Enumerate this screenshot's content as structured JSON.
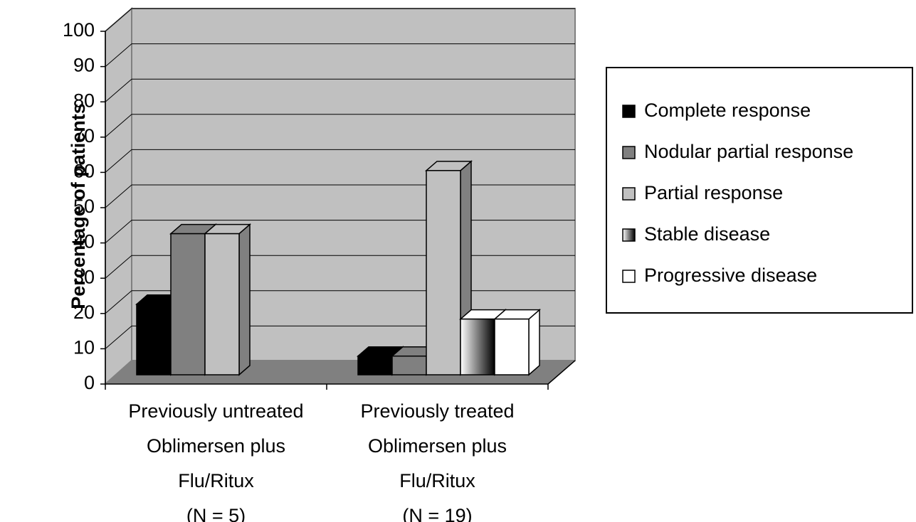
{
  "chart_data": {
    "type": "bar3d",
    "y_label": "Percentage of patients",
    "categories": [
      [
        "Previously untreated",
        "Oblimersen plus",
        "Flu/Ritux",
        "(N = 5)"
      ],
      [
        "Previously treated",
        "Oblimersen plus",
        "Flu/Ritux",
        "(N = 19)"
      ]
    ],
    "series": [
      {
        "name": "Complete response",
        "color": "#000000",
        "values": [
          20,
          5.3
        ]
      },
      {
        "name": "Nodular partial response",
        "color": "#808080",
        "values": [
          40,
          5.3
        ]
      },
      {
        "name": "Partial response",
        "color": "#c0c0c0",
        "values": [
          40,
          57.9
        ]
      },
      {
        "name": "Stable disease",
        "color": "#ffffff",
        "pattern": "gradient-to-black",
        "values": [
          null,
          15.8
        ]
      },
      {
        "name": "Progressive disease",
        "color": "#ffffff",
        "values": [
          null,
          15.8
        ]
      }
    ],
    "ylim": [
      0,
      100
    ],
    "yticks": [
      0,
      10,
      20,
      30,
      40,
      50,
      60,
      70,
      80,
      90,
      100
    ],
    "grid": true,
    "legend": "right"
  }
}
